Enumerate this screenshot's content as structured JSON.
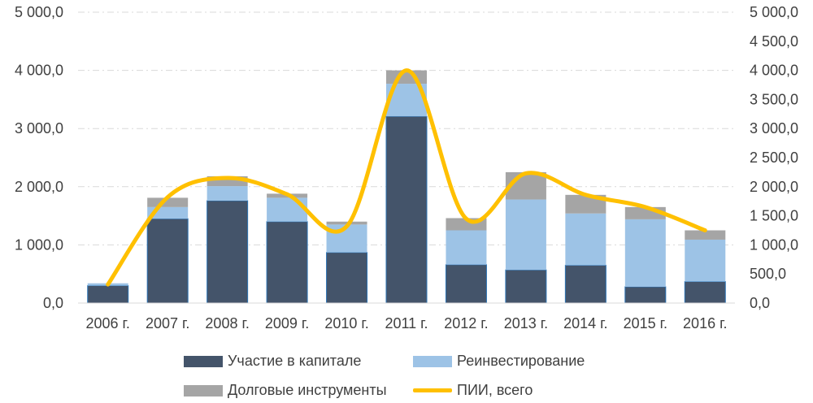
{
  "chart_data": {
    "type": "bar",
    "stacked": true,
    "categories": [
      "2006 г.",
      "2007 г.",
      "2008 г.",
      "2009 г.",
      "2010 г.",
      "2011 г.",
      "2012 г.",
      "2013 г.",
      "2014 г.",
      "2015 г.",
      "2016 г."
    ],
    "series": [
      {
        "name": "Участие в капитале",
        "type": "bar",
        "color": "#44546A",
        "values": [
          300,
          1450,
          1760,
          1400,
          870,
          3210,
          660,
          570,
          650,
          280,
          370
        ]
      },
      {
        "name": "Реинвестирование",
        "type": "bar",
        "color": "#9DC3E6",
        "values": [
          40,
          200,
          250,
          410,
          480,
          560,
          590,
          1210,
          890,
          1160,
          720
        ]
      },
      {
        "name": "Долговые инструменты",
        "type": "bar",
        "color": "#A5A5A5",
        "values": [
          0,
          160,
          170,
          70,
          50,
          230,
          210,
          470,
          320,
          210,
          160
        ]
      },
      {
        "name": "ПИИ, всего",
        "type": "line",
        "color": "#FFC000",
        "axis": "right",
        "values": [
          320,
          1820,
          2150,
          1870,
          1320,
          4000,
          1450,
          2230,
          1860,
          1650,
          1250
        ]
      }
    ],
    "ylim_left": [
      0,
      5000
    ],
    "ylim_right": [
      0,
      5000
    ],
    "yticks_left": [
      "0,0",
      "1 000,0",
      "2 000,0",
      "3 000,0",
      "4 000,0",
      "5 000,0"
    ],
    "yticks_right": [
      "0,0",
      "500,0",
      "1 000,0",
      "1 500,0",
      "2 000,0",
      "2 500,0",
      "3 000,0",
      "3 500,0",
      "4 000,0",
      "4 500,0",
      "5 000,0"
    ],
    "grid": true,
    "legend_position": "bottom"
  }
}
